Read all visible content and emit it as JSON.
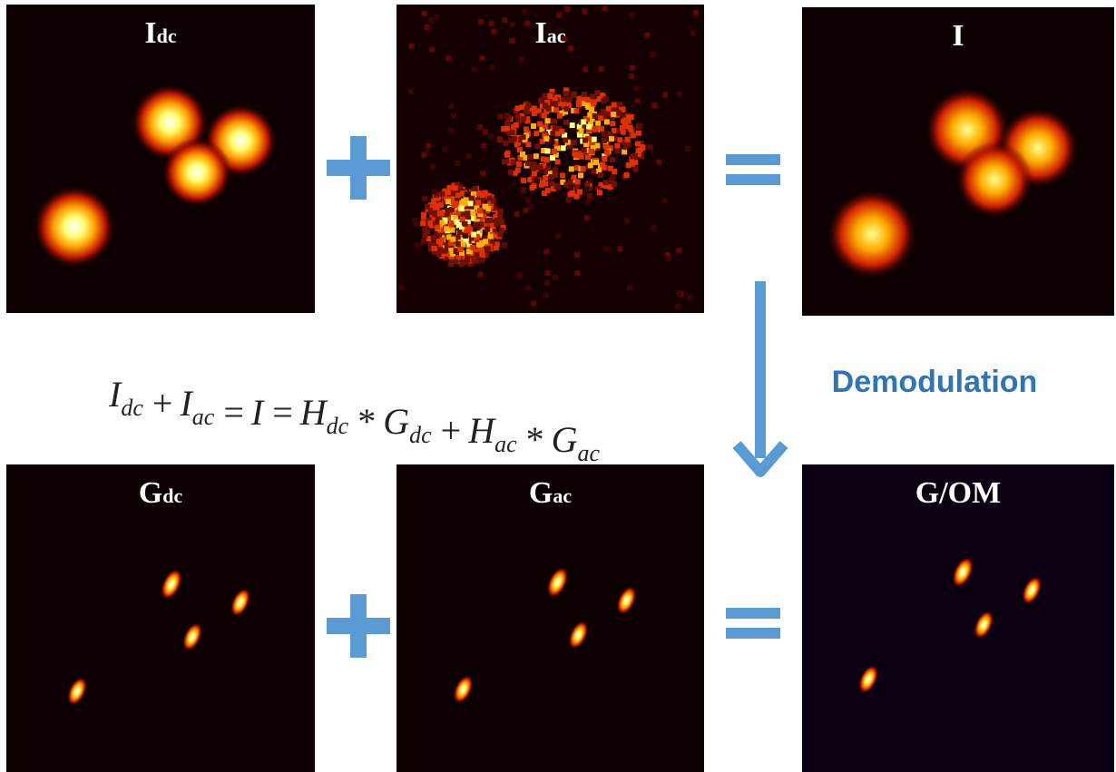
{
  "panels": [
    {
      "label": "I",
      "sub": "dc"
    },
    {
      "label": "I",
      "sub": "ac"
    },
    {
      "label": "I"
    },
    {
      "label": "G",
      "sub": "dc"
    },
    {
      "label": "G",
      "sub": "ac"
    },
    {
      "label": "G/OM"
    }
  ],
  "equation": [
    {
      "text": "I",
      "sub": "dc"
    },
    {
      "text": "+"
    },
    {
      "text": "I",
      "sub": "ac"
    },
    {
      "text": "="
    },
    {
      "text": "I"
    },
    {
      "text": "="
    },
    {
      "text": "H",
      "sub": "dc"
    },
    {
      "text": "*"
    },
    {
      "text": "G",
      "sub": "dc"
    },
    {
      "text": "+"
    },
    {
      "text": "H",
      "sub": "ac"
    },
    {
      "text": "*"
    },
    {
      "text": "G",
      "sub": "ac"
    }
  ],
  "arrow_label": "Demodulation"
}
